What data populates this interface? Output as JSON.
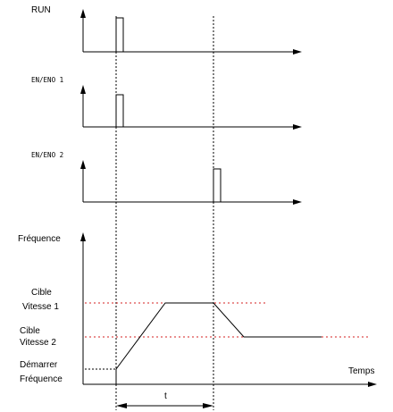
{
  "signals": {
    "run": "RUN",
    "en1": "EN/ENO 1",
    "en2": "EN/ENO 2"
  },
  "graph": {
    "y_label": "Fréquence",
    "x_label": "Temps",
    "target1": [
      "Cible",
      "Vitesse 1"
    ],
    "target2": [
      "Cible",
      "Vitesse 2"
    ],
    "start": [
      "Démarrer",
      "Fréquence"
    ],
    "interval": "t"
  },
  "colors": {
    "line": "#000000",
    "guide": "#000000",
    "target_guide": "#d42020"
  }
}
